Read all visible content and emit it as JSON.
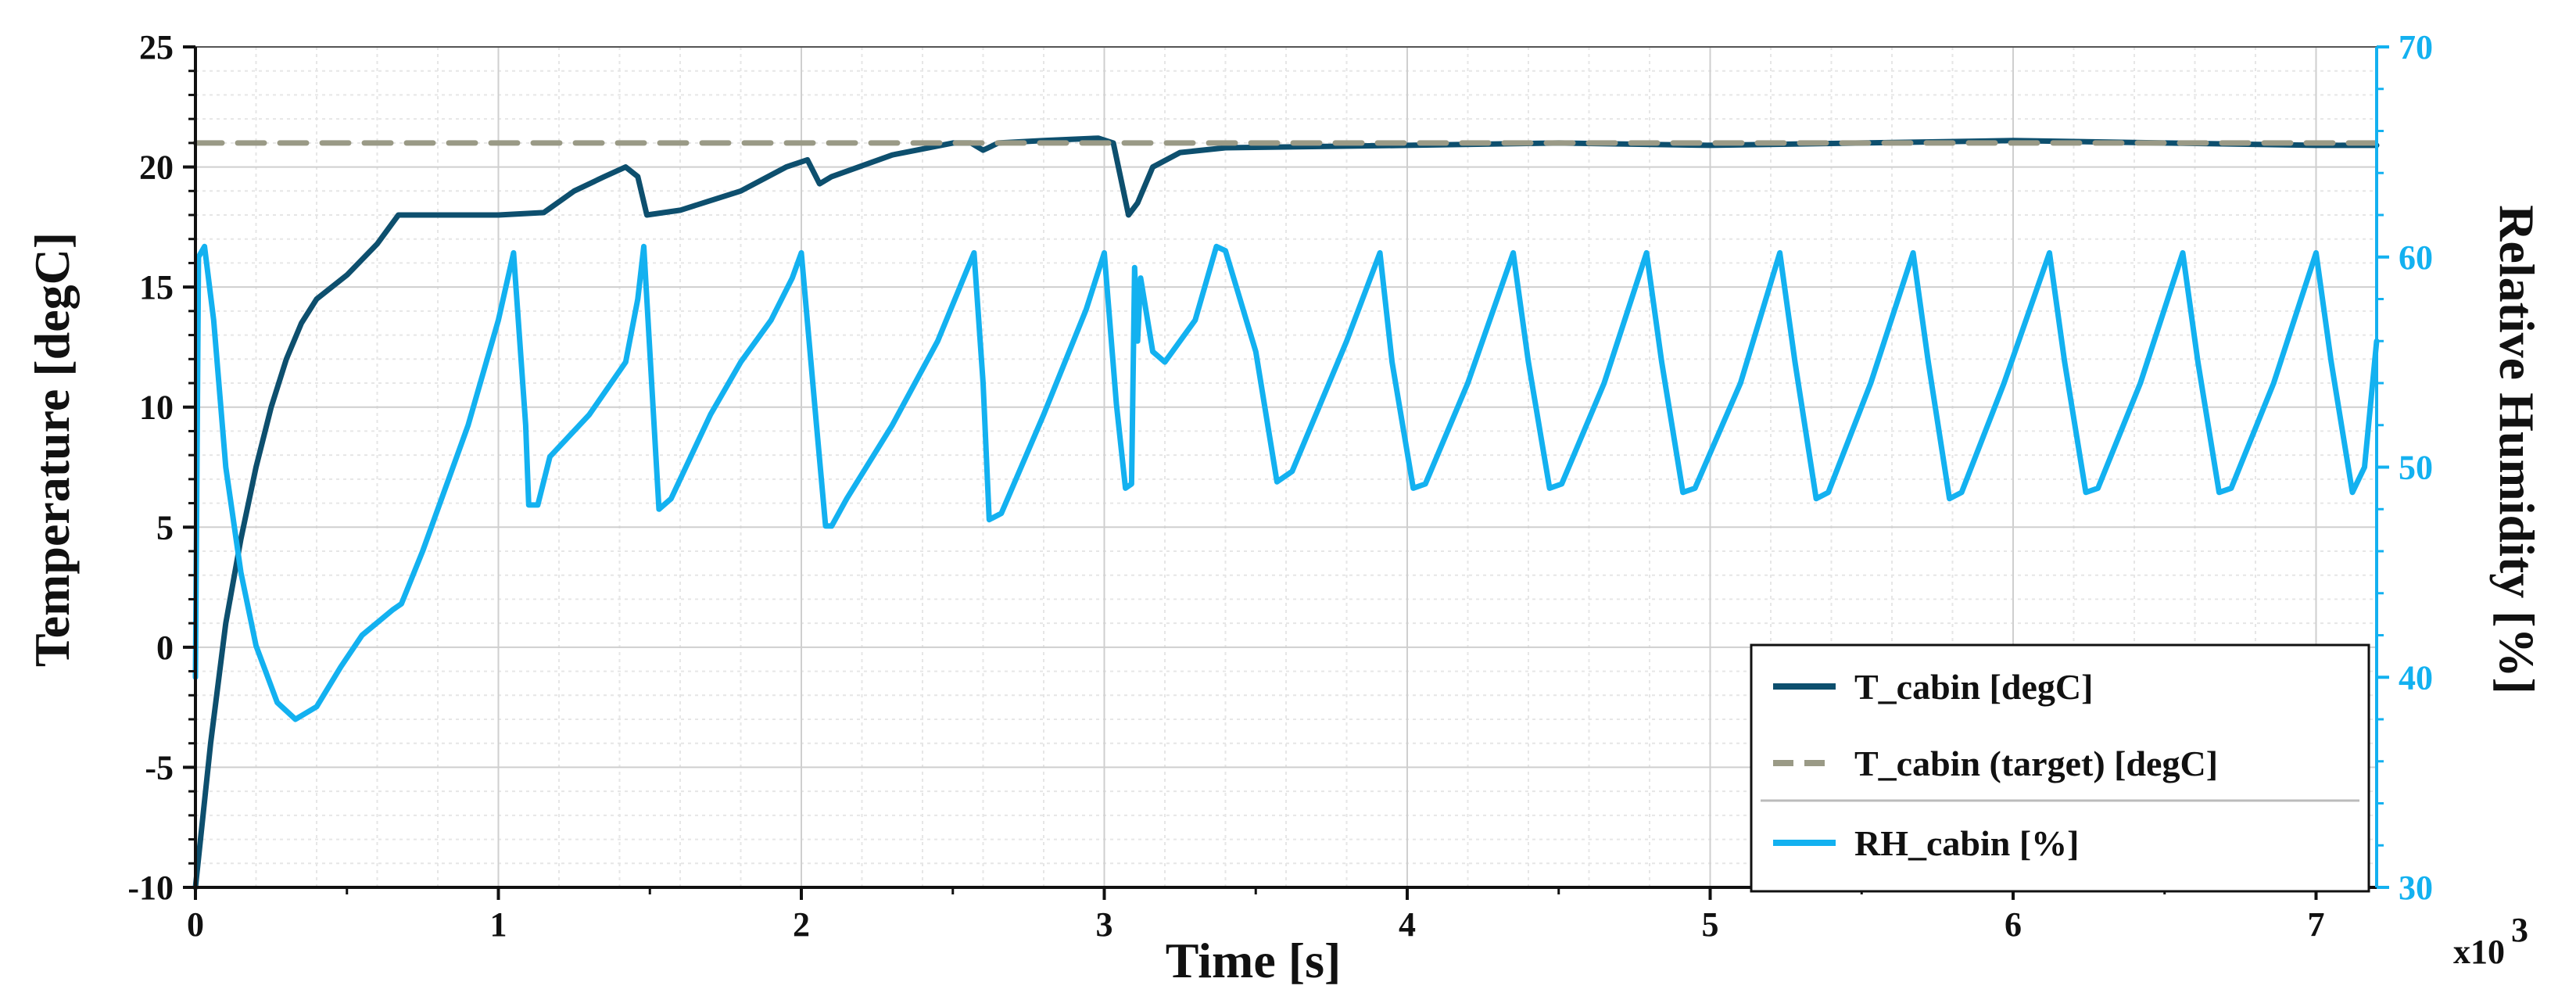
{
  "chart_data": {
    "type": "line",
    "xlabel": "Time [s]",
    "x_multiplier_label": "x10",
    "x_multiplier_exponent": "3",
    "ylabel_left": "Temperature [degC]",
    "ylabel_right": "Relative Humidity [%]",
    "xlim": [
      0,
      7.2
    ],
    "ylim_left": [
      -10,
      25
    ],
    "ylim_right": [
      30,
      70
    ],
    "x_ticks": [
      0,
      1,
      2,
      3,
      4,
      5,
      6,
      7
    ],
    "x_tick_labels": [
      "0",
      "1",
      "2",
      "3",
      "4",
      "5",
      "6",
      "7"
    ],
    "y_left_ticks": [
      -10,
      -5,
      0,
      5,
      10,
      15,
      20,
      25
    ],
    "y_left_tick_labels": [
      "-10",
      "-5",
      "0",
      "5",
      "10",
      "15",
      "20",
      "25"
    ],
    "y_right_ticks": [
      30,
      40,
      50,
      60,
      70
    ],
    "y_right_tick_labels": [
      "30",
      "40",
      "50",
      "60",
      "70"
    ],
    "colors": {
      "t_cabin": "#0d4f6e",
      "t_target": "#9a9a86",
      "rh_cabin": "#13b1f0",
      "right_axis": "#13b1f0"
    },
    "legend": {
      "position": "bottom-right",
      "entries": [
        {
          "name": "T_cabin [degC]",
          "series": "t_cabin",
          "style": "solid"
        },
        {
          "name": "T_cabin (target) [degC]",
          "series": "t_target",
          "style": "dashed"
        },
        {
          "name": "RH_cabin [%]",
          "series": "rh_cabin",
          "style": "solid"
        }
      ]
    },
    "series": [
      {
        "name": "T_cabin [degC]",
        "key": "t_cabin",
        "axis": "left",
        "points": [
          [
            0,
            -10
          ],
          [
            0.05,
            -4
          ],
          [
            0.1,
            1
          ],
          [
            0.15,
            4.5
          ],
          [
            0.2,
            7.5
          ],
          [
            0.25,
            10
          ],
          [
            0.3,
            12
          ],
          [
            0.35,
            13.5
          ],
          [
            0.4,
            14.5
          ],
          [
            0.5,
            15.5
          ],
          [
            0.6,
            16.8
          ],
          [
            0.67,
            18
          ],
          [
            0.8,
            18
          ],
          [
            1.0,
            18
          ],
          [
            1.15,
            18.1
          ],
          [
            1.25,
            19
          ],
          [
            1.35,
            19.6
          ],
          [
            1.42,
            20
          ],
          [
            1.46,
            19.6
          ],
          [
            1.49,
            18
          ],
          [
            1.6,
            18.2
          ],
          [
            1.8,
            19
          ],
          [
            1.95,
            20
          ],
          [
            2.02,
            20.3
          ],
          [
            2.06,
            19.3
          ],
          [
            2.1,
            19.6
          ],
          [
            2.3,
            20.5
          ],
          [
            2.5,
            21
          ],
          [
            2.56,
            21
          ],
          [
            2.6,
            20.7
          ],
          [
            2.65,
            21
          ],
          [
            2.8,
            21.1
          ],
          [
            2.98,
            21.2
          ],
          [
            3.03,
            21
          ],
          [
            3.08,
            18
          ],
          [
            3.11,
            18.5
          ],
          [
            3.16,
            20
          ],
          [
            3.25,
            20.6
          ],
          [
            3.4,
            20.8
          ],
          [
            4.0,
            20.9
          ],
          [
            4.5,
            21
          ],
          [
            5.0,
            20.9
          ],
          [
            5.5,
            21
          ],
          [
            6.0,
            21.1
          ],
          [
            6.5,
            21
          ],
          [
            7.0,
            20.9
          ],
          [
            7.2,
            20.9
          ]
        ]
      },
      {
        "name": "T_cabin (target) [degC]",
        "key": "t_target",
        "axis": "left",
        "points": [
          [
            0,
            21
          ],
          [
            7.2,
            21
          ]
        ]
      },
      {
        "name": "RH_cabin [%]",
        "key": "rh_cabin",
        "axis": "right",
        "points": [
          [
            0,
            40
          ],
          [
            0.01,
            60
          ],
          [
            0.03,
            60.5
          ],
          [
            0.06,
            57
          ],
          [
            0.1,
            50
          ],
          [
            0.15,
            45
          ],
          [
            0.2,
            41.5
          ],
          [
            0.27,
            38.8
          ],
          [
            0.33,
            38
          ],
          [
            0.4,
            38.6
          ],
          [
            0.48,
            40.5
          ],
          [
            0.55,
            42
          ],
          [
            0.65,
            43.2
          ],
          [
            0.68,
            43.5
          ],
          [
            0.75,
            46
          ],
          [
            0.9,
            52
          ],
          [
            1.0,
            57
          ],
          [
            1.05,
            60.2
          ],
          [
            1.09,
            52
          ],
          [
            1.1,
            48.2
          ],
          [
            1.13,
            48.2
          ],
          [
            1.17,
            50.5
          ],
          [
            1.3,
            52.5
          ],
          [
            1.42,
            55
          ],
          [
            1.46,
            58
          ],
          [
            1.48,
            60.5
          ],
          [
            1.51,
            53
          ],
          [
            1.53,
            48
          ],
          [
            1.57,
            48.5
          ],
          [
            1.7,
            52.5
          ],
          [
            1.8,
            55
          ],
          [
            1.9,
            57
          ],
          [
            1.97,
            59
          ],
          [
            2.0,
            60.2
          ],
          [
            2.05,
            52
          ],
          [
            2.08,
            47.2
          ],
          [
            2.1,
            47.2
          ],
          [
            2.15,
            48.5
          ],
          [
            2.3,
            52
          ],
          [
            2.45,
            56
          ],
          [
            2.55,
            59.5
          ],
          [
            2.57,
            60.2
          ],
          [
            2.6,
            54
          ],
          [
            2.62,
            47.5
          ],
          [
            2.66,
            47.8
          ],
          [
            2.8,
            52.5
          ],
          [
            2.94,
            57.5
          ],
          [
            3.0,
            60.2
          ],
          [
            3.04,
            53
          ],
          [
            3.07,
            49
          ],
          [
            3.09,
            49.2
          ],
          [
            3.1,
            59.5
          ],
          [
            3.11,
            56
          ],
          [
            3.12,
            59
          ],
          [
            3.16,
            55.5
          ],
          [
            3.2,
            55
          ],
          [
            3.3,
            57
          ],
          [
            3.37,
            60.5
          ],
          [
            3.4,
            60.3
          ],
          [
            3.5,
            55.5
          ],
          [
            3.57,
            49.3
          ],
          [
            3.62,
            49.8
          ],
          [
            3.8,
            56
          ],
          [
            3.91,
            60.2
          ],
          [
            3.95,
            55
          ],
          [
            4.02,
            49
          ],
          [
            4.06,
            49.2
          ],
          [
            4.2,
            54
          ],
          [
            4.35,
            60.2
          ],
          [
            4.4,
            55
          ],
          [
            4.47,
            49
          ],
          [
            4.51,
            49.2
          ],
          [
            4.65,
            54
          ],
          [
            4.79,
            60.2
          ],
          [
            4.84,
            55
          ],
          [
            4.91,
            48.8
          ],
          [
            4.95,
            49
          ],
          [
            5.1,
            54
          ],
          [
            5.23,
            60.2
          ],
          [
            5.28,
            55
          ],
          [
            5.35,
            48.5
          ],
          [
            5.39,
            48.8
          ],
          [
            5.53,
            54
          ],
          [
            5.67,
            60.2
          ],
          [
            5.72,
            55
          ],
          [
            5.79,
            48.5
          ],
          [
            5.83,
            48.8
          ],
          [
            5.97,
            54
          ],
          [
            6.12,
            60.2
          ],
          [
            6.17,
            55
          ],
          [
            6.24,
            48.8
          ],
          [
            6.28,
            49
          ],
          [
            6.42,
            54
          ],
          [
            6.56,
            60.2
          ],
          [
            6.61,
            55
          ],
          [
            6.68,
            48.8
          ],
          [
            6.72,
            49
          ],
          [
            6.86,
            54
          ],
          [
            7.0,
            60.2
          ],
          [
            7.05,
            55
          ],
          [
            7.12,
            48.8
          ],
          [
            7.16,
            50
          ],
          [
            7.2,
            56
          ]
        ]
      }
    ]
  }
}
